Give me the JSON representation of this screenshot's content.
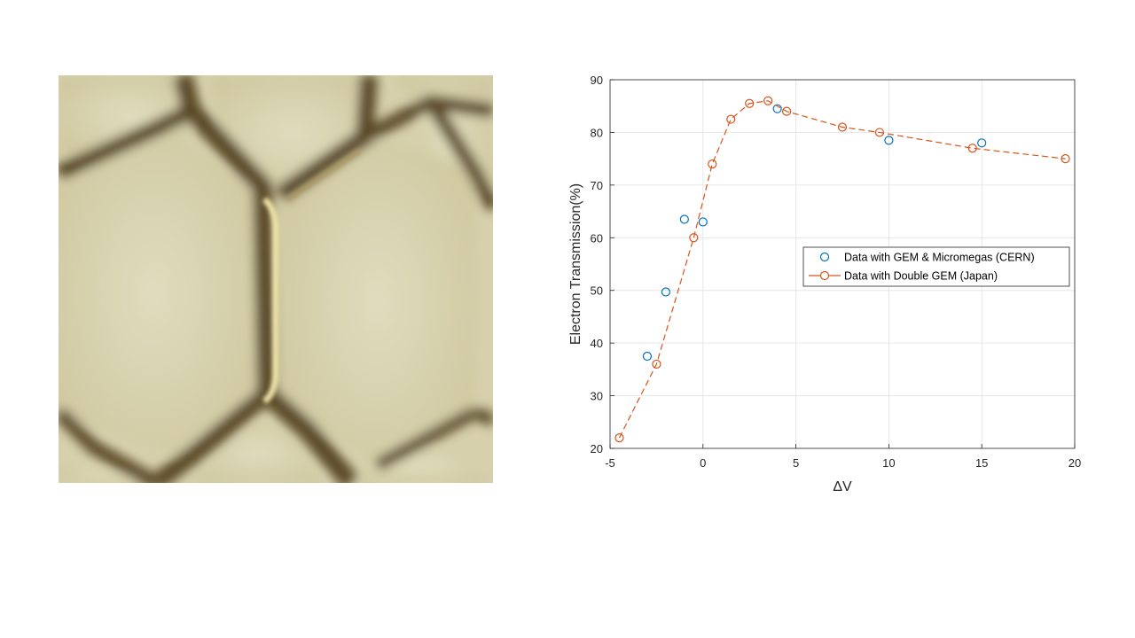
{
  "chart_data": {
    "type": "scatter",
    "xlabel": "ΔV",
    "ylabel": "Electron Transmission(%)",
    "xlim": [
      -5,
      20
    ],
    "ylim": [
      20,
      90
    ],
    "xticks": [
      -5,
      0,
      5,
      10,
      15,
      20
    ],
    "yticks": [
      20,
      30,
      40,
      50,
      60,
      70,
      80,
      90
    ],
    "grid": true,
    "legend_position": "right",
    "series": [
      {
        "name": "Data with GEM & Micromegas (CERN)",
        "style": "markers",
        "color": "#0072BD",
        "x": [
          -3,
          -2,
          -1,
          0,
          4,
          10,
          15
        ],
        "y": [
          37.5,
          49.7,
          63.5,
          63,
          84.5,
          78.5,
          78
        ]
      },
      {
        "name": "Data with Double GEM (Japan)",
        "style": "dashed-line-markers",
        "color": "#D95319",
        "x": [
          -4.5,
          -2.5,
          -0.5,
          0.5,
          1.5,
          2.5,
          3.5,
          4.5,
          7.5,
          9.5,
          14.5,
          19.5
        ],
        "y": [
          22,
          36,
          60,
          74,
          82.5,
          85.5,
          86,
          84,
          81,
          80,
          77,
          75
        ]
      }
    ]
  },
  "photo": {
    "description_icon": "hexagonal-gem-mesh-icon",
    "colors": {
      "background": "#e3dfc2",
      "cell": "#ddd8b6",
      "edge_dark": "#4a3c22",
      "edge_mid": "#7a6538",
      "highlight": "#f1e7b8"
    }
  }
}
